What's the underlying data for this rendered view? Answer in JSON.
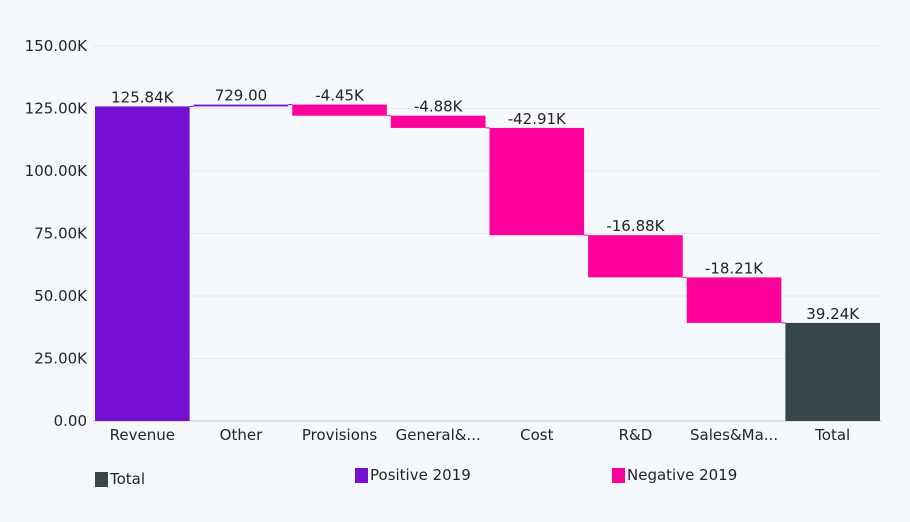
{
  "chart_data": {
    "type": "waterfall",
    "title": "",
    "xlabel": "",
    "ylabel": "",
    "ylim": [
      0,
      150000
    ],
    "y_ticks": [
      0,
      25000,
      50000,
      75000,
      100000,
      125000,
      150000
    ],
    "y_tick_labels": [
      "0.00",
      "25.00K",
      "50.00K",
      "75.00K",
      "100.00K",
      "125.00K",
      "150.00K"
    ],
    "grid": true,
    "categories": [
      "Revenue",
      "Other",
      "Provisions",
      "General&...",
      "Cost",
      "R&D",
      "Sales&Ma...",
      "Total"
    ],
    "values": [
      125840,
      729,
      -4450,
      -4880,
      -42910,
      -16880,
      -18210,
      39240
    ],
    "kinds": [
      "positive",
      "positive",
      "negative",
      "negative",
      "negative",
      "negative",
      "negative",
      "total"
    ],
    "data_labels": [
      "125.84K",
      "729.00",
      "-4.45K",
      "-4.88K",
      "-42.91K",
      "-16.88K",
      "-18.21K",
      "39.24K"
    ],
    "legend_position": "bottom",
    "legend": [
      {
        "key": "total",
        "label": "Total",
        "color": "#374649"
      },
      {
        "key": "positive",
        "label": "Positive 2019",
        "color": "#7510d2"
      },
      {
        "key": "negative",
        "label": "Negative 2019",
        "color": "#fd019a"
      }
    ]
  }
}
